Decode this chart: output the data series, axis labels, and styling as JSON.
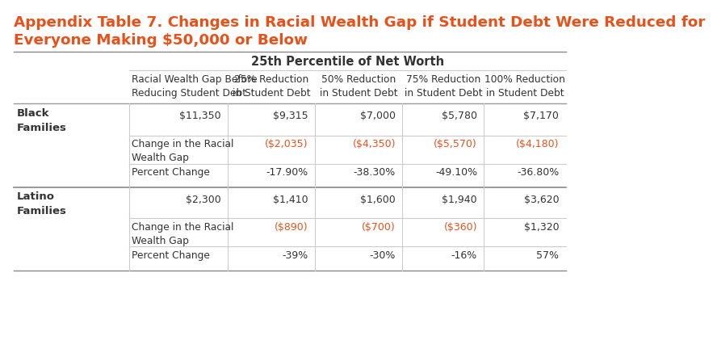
{
  "title_line1": "Appendix Table 7. Changes in Racial Wealth Gap if Student Debt Were Reduced for",
  "title_line2": "Everyone Making $50,000 or Below",
  "title_color": "#E8521A",
  "subtitle": "25th Percentile of Net Worth",
  "subtitle_color": "#333333",
  "background_color": "#FFFFFF",
  "col_headers": [
    "Racial Wealth Gap Before\nReducing Student Debt",
    "25% Reduction\nin Student Debt",
    "50% Reduction\nin Student Debt",
    "75% Reduction\nin Student Debt",
    "100% Reduction\nin Student Debt"
  ],
  "black_label": "Black\nFamilies",
  "black_row1": [
    "$11,350",
    "$9,315",
    "$7,000",
    "$5,780",
    "$7,170"
  ],
  "black_row2_label": "Change in the Racial\nWealth Gap",
  "black_row2": [
    "($2,035)",
    "($4,350)",
    "($5,570)",
    "($4,180)"
  ],
  "black_row2_colors": [
    "#E8521A",
    "#E8521A",
    "#E8521A",
    "#E8521A"
  ],
  "black_row3_label": "Percent Change",
  "black_row3": [
    "-17.90%",
    "-38.30%",
    "-49.10%",
    "-36.80%"
  ],
  "black_row3_colors": [
    "#333333",
    "#333333",
    "#333333",
    "#333333"
  ],
  "latino_label": "Latino\nFamilies",
  "latino_row1": [
    "$2,300",
    "$1,410",
    "$1,600",
    "$1,940",
    "$3,620"
  ],
  "latino_row2_label": "Change in the Racial\nWealth Gap",
  "latino_row2": [
    "($890)",
    "($700)",
    "($360)",
    "$1,320"
  ],
  "latino_row2_colors": [
    "#E8521A",
    "#E8521A",
    "#E8521A",
    "#333333"
  ],
  "latino_row3_label": "Percent Change",
  "latino_row3": [
    "-39%",
    "-30%",
    "-16%",
    "57%"
  ],
  "latino_row3_colors": [
    "#333333",
    "#333333",
    "#333333",
    "#333333"
  ],
  "text_color": "#333333",
  "header_line_color": "#999999",
  "cell_line_color": "#CCCCCC",
  "bold_line_color": "#888888"
}
